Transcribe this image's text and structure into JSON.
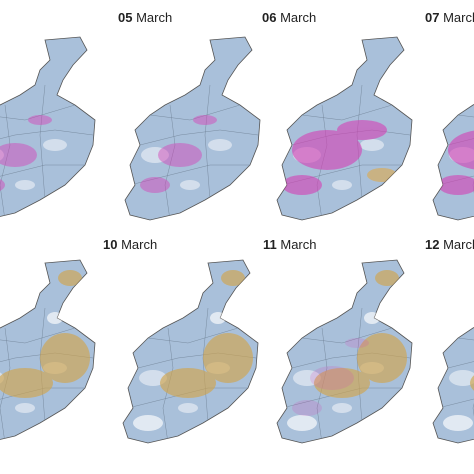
{
  "panels": [
    {
      "day": "05",
      "month": "March"
    },
    {
      "day": "06",
      "month": "March"
    },
    {
      "day": "07",
      "month": "March"
    },
    {
      "day": "10",
      "month": "March"
    },
    {
      "day": "11",
      "month": "March"
    },
    {
      "day": "12",
      "month": "March"
    }
  ]
}
